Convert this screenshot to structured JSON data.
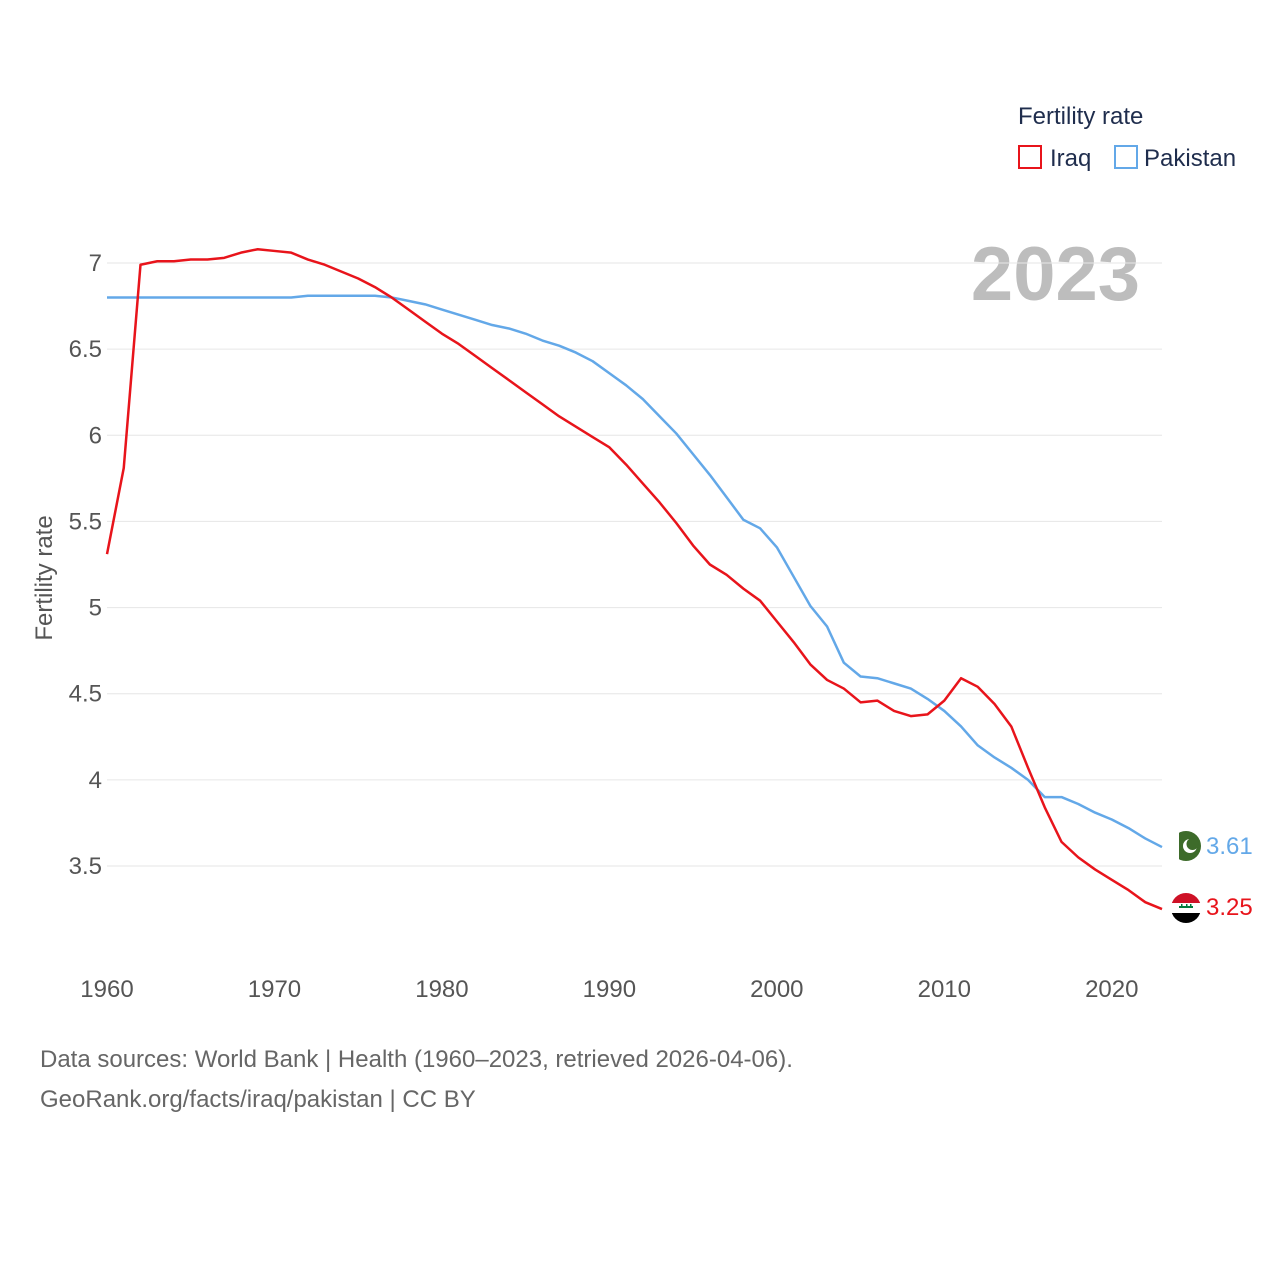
{
  "chart_data": {
    "type": "line",
    "year_label": "2023",
    "ylabel": "Fertility rate",
    "xlim": [
      1960,
      2023
    ],
    "ylim": [
      3.0,
      7.25
    ],
    "x_ticks": [
      1960,
      1970,
      1980,
      1990,
      2000,
      2010,
      2020
    ],
    "y_ticks": [
      3.5,
      4,
      4.5,
      5,
      5.5,
      6,
      6.5,
      7
    ],
    "legend_title": "Fertility rate",
    "x": [
      1960,
      1961,
      1962,
      1963,
      1964,
      1965,
      1966,
      1967,
      1968,
      1969,
      1970,
      1971,
      1972,
      1973,
      1974,
      1975,
      1976,
      1977,
      1978,
      1979,
      1980,
      1981,
      1982,
      1983,
      1984,
      1985,
      1986,
      1987,
      1988,
      1989,
      1990,
      1991,
      1992,
      1993,
      1994,
      1995,
      1996,
      1997,
      1998,
      1999,
      2000,
      2001,
      2002,
      2003,
      2004,
      2005,
      2006,
      2007,
      2008,
      2009,
      2010,
      2011,
      2012,
      2013,
      2014,
      2015,
      2016,
      2017,
      2018,
      2019,
      2020,
      2021,
      2022,
      2023
    ],
    "series": [
      {
        "name": "Iraq",
        "color": "#e8141b",
        "end_label": "3.25",
        "flag": "iraq-flag-icon",
        "values": [
          5.31,
          5.81,
          6.99,
          7.01,
          7.01,
          7.02,
          7.02,
          7.03,
          7.06,
          7.08,
          7.07,
          7.06,
          7.02,
          6.99,
          6.95,
          6.91,
          6.86,
          6.8,
          6.73,
          6.66,
          6.59,
          6.53,
          6.46,
          6.39,
          6.32,
          6.25,
          6.18,
          6.11,
          6.05,
          5.99,
          5.93,
          5.83,
          5.72,
          5.61,
          5.49,
          5.36,
          5.25,
          5.19,
          5.11,
          5.04,
          4.92,
          4.8,
          4.67,
          4.58,
          4.53,
          4.45,
          4.46,
          4.4,
          4.37,
          4.38,
          4.46,
          4.59,
          4.54,
          4.44,
          4.31,
          4.07,
          3.84,
          3.64,
          3.55,
          3.48,
          3.42,
          3.36,
          3.29,
          3.25
        ]
      },
      {
        "name": "Pakistan",
        "color": "#63a8e8",
        "end_label": "3.61",
        "flag": "pakistan-flag-icon",
        "values": [
          6.8,
          6.8,
          6.8,
          6.8,
          6.8,
          6.8,
          6.8,
          6.8,
          6.8,
          6.8,
          6.8,
          6.8,
          6.81,
          6.81,
          6.81,
          6.81,
          6.81,
          6.8,
          6.78,
          6.76,
          6.73,
          6.7,
          6.67,
          6.64,
          6.62,
          6.59,
          6.55,
          6.52,
          6.48,
          6.43,
          6.36,
          6.29,
          6.21,
          6.11,
          6.01,
          5.89,
          5.77,
          5.64,
          5.51,
          5.46,
          5.35,
          5.18,
          5.01,
          4.89,
          4.68,
          4.6,
          4.59,
          4.56,
          4.53,
          4.47,
          4.4,
          4.31,
          4.2,
          4.13,
          4.07,
          4.0,
          3.9,
          3.9,
          3.86,
          3.81,
          3.77,
          3.72,
          3.66,
          3.61
        ]
      }
    ]
  },
  "source": {
    "line1": "Data sources: World Bank | Health (1960–2023, retrieved 2026-04-06).",
    "line2": "GeoRank.org/facts/iraq/pakistan | CC BY"
  }
}
